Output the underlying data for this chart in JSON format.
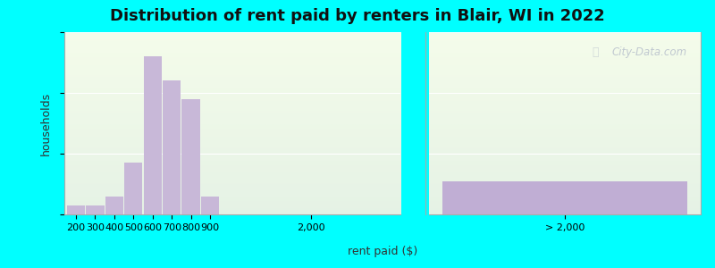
{
  "title": "Distribution of rent paid by renters in Blair, WI in 2022",
  "xlabel": "rent paid ($)",
  "ylabel": "households",
  "bar_color": "#c8b8d8",
  "bar_color_gt2000": "#c0aed4",
  "background_outer": "#00ffff",
  "bars": [
    {
      "label": "200",
      "value": 3
    },
    {
      "label": "300",
      "value": 3
    },
    {
      "label": "400",
      "value": 6
    },
    {
      "label": "500",
      "value": 17
    },
    {
      "label": "600",
      "value": 52
    },
    {
      "label": "700",
      "value": 44
    },
    {
      "label": "800",
      "value": 38
    },
    {
      "label": "900",
      "value": 6
    }
  ],
  "bar_2000_value": 11,
  "ylim": [
    0,
    60
  ],
  "yticks": [
    0,
    20,
    40,
    60
  ],
  "watermark": "City-Data.com",
  "title_fontsize": 13,
  "axis_label_fontsize": 9,
  "tick_fontsize": 8
}
